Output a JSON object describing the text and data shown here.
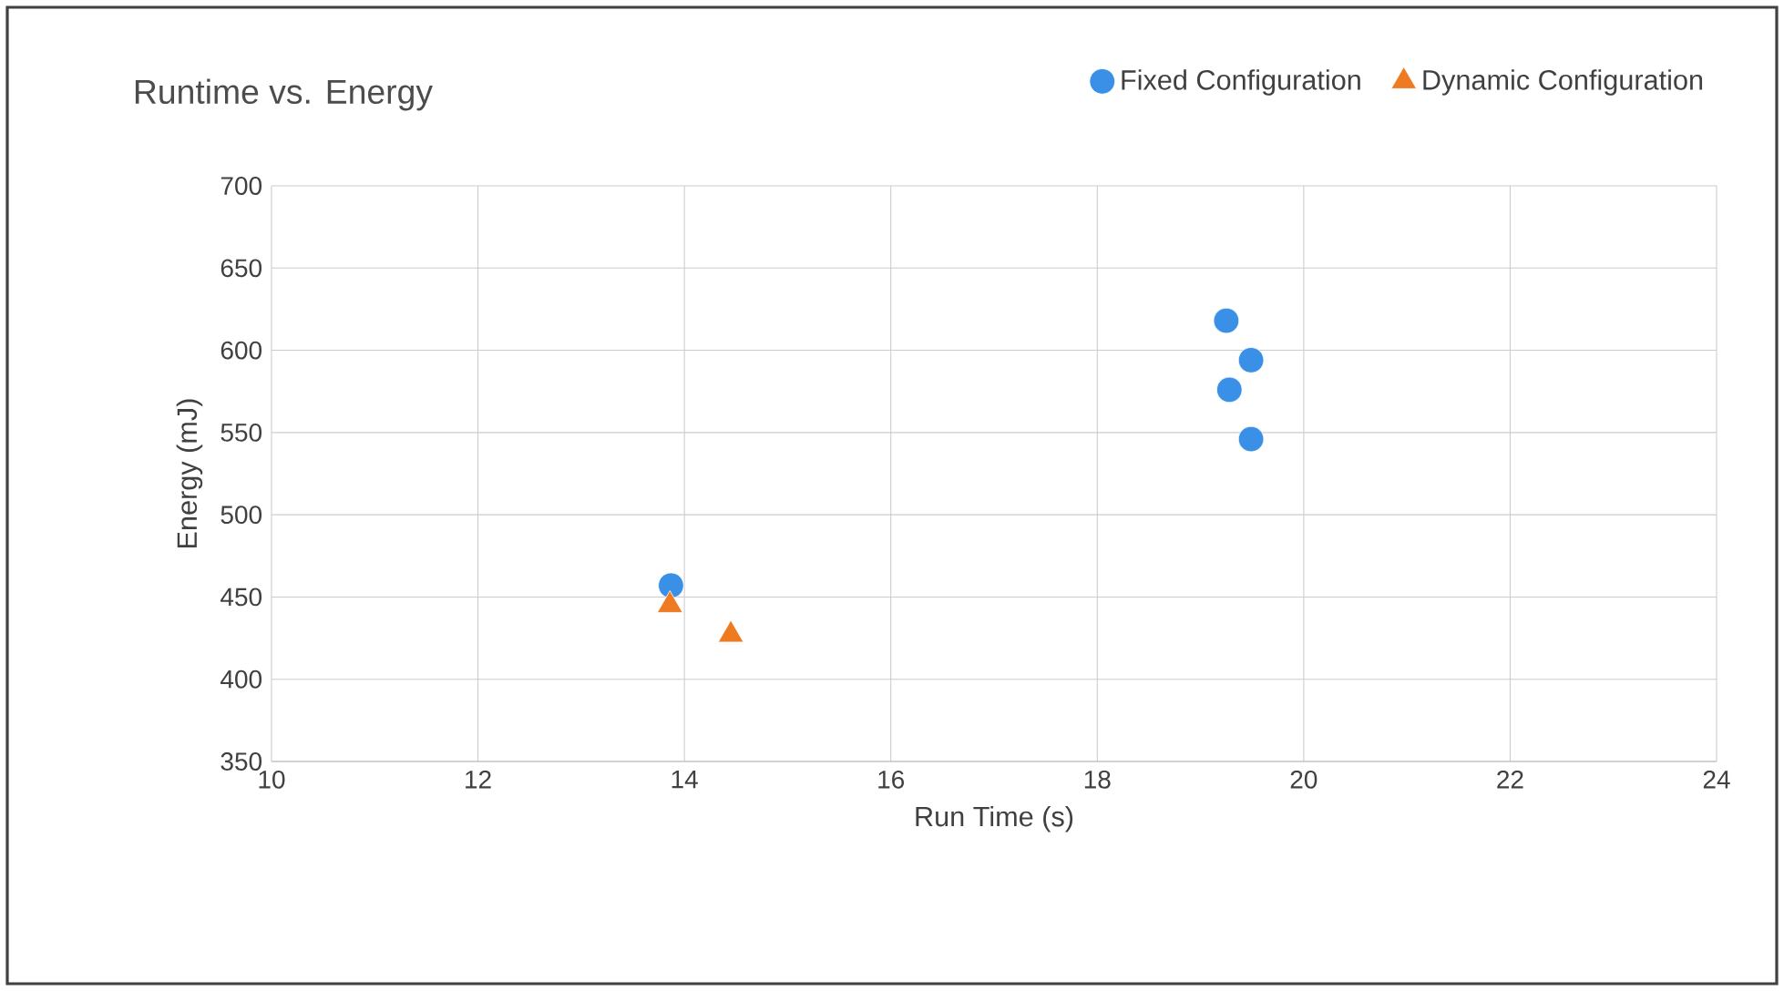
{
  "chart_data": {
    "type": "scatter",
    "title": "Runtime vs. Energy",
    "xlabel": "Run Time (s)",
    "ylabel": "Energy (mJ)",
    "xlim": [
      10,
      24
    ],
    "xticks": [
      10,
      12,
      14,
      16,
      18,
      20,
      22,
      24
    ],
    "ylim": [
      350,
      700
    ],
    "yticks": [
      350,
      400,
      450,
      500,
      550,
      600,
      650,
      700
    ],
    "grid": true,
    "legend": "top right",
    "series": [
      {
        "name": "Fixed Configuration",
        "color": "#3a8fe6",
        "marker": "circle",
        "x": [
          13.87,
          19.25,
          19.49,
          19.28,
          19.49
        ],
        "values": [
          457,
          618,
          594,
          576,
          546
        ]
      },
      {
        "name": "Dynamic Configuration",
        "color": "#ee7a22",
        "marker": "triangle",
        "x": [
          13.86,
          14.45
        ],
        "values": [
          445,
          427
        ]
      }
    ]
  }
}
